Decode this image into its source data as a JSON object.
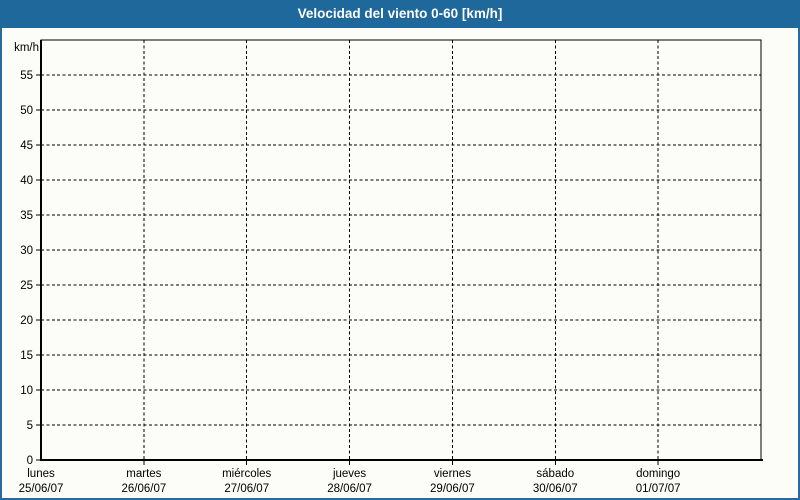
{
  "window": {
    "background": "#fcfdf9",
    "border_color": "#2a6b9e"
  },
  "title_bar": {
    "label": "Velocidad del viento 0-60 [km/h]",
    "background": "#1e689c",
    "text_color": "#ffffff"
  },
  "chart_data": {
    "type": "line",
    "title": "Velocidad del viento 0-60 [km/h]",
    "ylabel": "km/h",
    "ylim": [
      0,
      60
    ],
    "y_ticks": [
      0,
      5,
      10,
      15,
      20,
      25,
      30,
      35,
      40,
      45,
      50,
      55
    ],
    "x_categories": [
      {
        "day": "lunes",
        "date": "25/06/07"
      },
      {
        "day": "martes",
        "date": "26/06/07"
      },
      {
        "day": "miércoles",
        "date": "27/06/07"
      },
      {
        "day": "jueves",
        "date": "28/06/07"
      },
      {
        "day": "viernes",
        "date": "29/06/07"
      },
      {
        "day": "sábado",
        "date": "30/06/07"
      },
      {
        "day": "domingo",
        "date": "01/07/07"
      }
    ],
    "series": [],
    "grid": {
      "style": "dashed",
      "color": "#000000"
    },
    "legend": "none"
  }
}
